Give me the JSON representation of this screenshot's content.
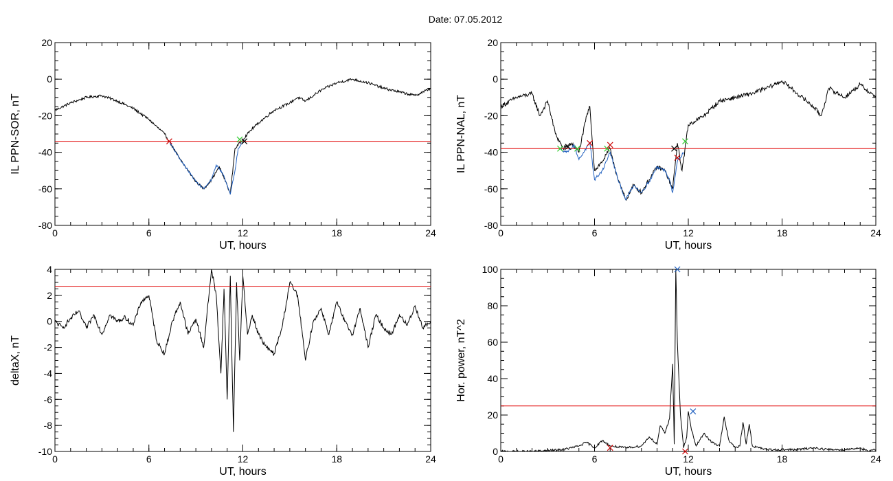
{
  "title": "Date:  07.05.2012",
  "chart_data": [
    {
      "id": "sor",
      "type": "line",
      "xlabel": "UT, hours",
      "ylabel": "IL PPN-SOR, nT",
      "xlim": [
        0,
        24
      ],
      "ylim": [
        -80,
        20
      ],
      "xticks": [
        0,
        6,
        12,
        18,
        24
      ],
      "yticks": [
        -80,
        -60,
        -40,
        -20,
        0,
        20
      ],
      "series": [
        {
          "color": "#000000",
          "noise": 0.7,
          "x": [
            0,
            1,
            2,
            3,
            4,
            5,
            6,
            7,
            7.3,
            8,
            9,
            9.5,
            10,
            10.5,
            11,
            11.2,
            11.5,
            12,
            12.5,
            13,
            14,
            15,
            15.5,
            16,
            17,
            18,
            19,
            20,
            21,
            22,
            23,
            24
          ],
          "y": [
            -17,
            -13,
            -10,
            -9,
            -12,
            -16,
            -22,
            -30,
            -34,
            -44,
            -56,
            -60,
            -55,
            -48,
            -58,
            -63,
            -38,
            -33,
            -28,
            -24,
            -17,
            -13,
            -10,
            -12,
            -6,
            -2,
            0,
            -2,
            -5,
            -7,
            -9,
            -5
          ]
        },
        {
          "color": "#1f5fbf",
          "noise": 0.5,
          "x": [
            7.3,
            8,
            8.5,
            9,
            9.5,
            10,
            10.3,
            10.5,
            10.8,
            11,
            11.2,
            11.5,
            11.7,
            12
          ],
          "y": [
            -34,
            -44,
            -50,
            -56,
            -60,
            -55,
            -47,
            -49,
            -53,
            -58,
            -63,
            -50,
            -38,
            -34
          ]
        }
      ],
      "threshold": -34,
      "markers": [
        {
          "x": 7.3,
          "y": -34,
          "color": "#cc0000"
        },
        {
          "x": 11.8,
          "y": -33,
          "color": "#33cc33"
        },
        {
          "x": 12.1,
          "y": -34,
          "color": "#000000"
        }
      ]
    },
    {
      "id": "nal",
      "type": "line",
      "xlabel": "UT, hours",
      "ylabel": "IL PPN-NAL, nT",
      "xlim": [
        0,
        24
      ],
      "ylim": [
        -80,
        20
      ],
      "xticks": [
        0,
        6,
        12,
        18,
        24
      ],
      "yticks": [
        -80,
        -60,
        -40,
        -20,
        0,
        20
      ],
      "series": [
        {
          "color": "#000000",
          "noise": 1.2,
          "x": [
            0,
            1,
            2,
            2.5,
            3,
            3.5,
            4,
            4.5,
            5,
            5.5,
            5.7,
            6,
            6.5,
            7,
            7.5,
            8,
            8.5,
            9,
            9.5,
            10,
            10.5,
            11,
            11.3,
            11.6,
            12,
            13,
            14,
            15,
            16,
            17,
            18,
            19,
            20,
            20.5,
            21,
            22,
            23,
            24
          ],
          "y": [
            -15,
            -10,
            -8,
            -20,
            -12,
            -30,
            -38,
            -35,
            -40,
            -20,
            -15,
            -50,
            -45,
            -38,
            -55,
            -66,
            -58,
            -62,
            -55,
            -48,
            -50,
            -60,
            -35,
            -50,
            -25,
            -20,
            -12,
            -10,
            -8,
            -5,
            -1,
            -8,
            -15,
            -20,
            -5,
            -10,
            -3,
            -10
          ]
        },
        {
          "color": "#1f5fbf",
          "noise": 0.8,
          "x": [
            3.8,
            4.2,
            4.7,
            5,
            5.3,
            5.7,
            6,
            6.5,
            7,
            7.5,
            8,
            8.5,
            9,
            9.5,
            10,
            10.5,
            10.8,
            11,
            11.3,
            11.7
          ],
          "y": [
            -38,
            -40,
            -36,
            -44,
            -40,
            -35,
            -55,
            -50,
            -40,
            -55,
            -66,
            -58,
            -62,
            -56,
            -48,
            -50,
            -55,
            -62,
            -45,
            -40
          ]
        }
      ],
      "threshold": -38,
      "markers": [
        {
          "x": 3.8,
          "y": -38,
          "color": "#33cc33"
        },
        {
          "x": 4.3,
          "y": -37,
          "color": "#000000"
        },
        {
          "x": 4.9,
          "y": -38,
          "color": "#33cc33"
        },
        {
          "x": 5.7,
          "y": -35,
          "color": "#cc0000"
        },
        {
          "x": 6.8,
          "y": -38,
          "color": "#33cc33"
        },
        {
          "x": 7.0,
          "y": -36,
          "color": "#cc0000"
        },
        {
          "x": 11.1,
          "y": -38,
          "color": "#000000"
        },
        {
          "x": 11.3,
          "y": -43,
          "color": "#cc0000"
        },
        {
          "x": 11.8,
          "y": -34,
          "color": "#33cc33"
        }
      ]
    },
    {
      "id": "deltax",
      "type": "line",
      "xlabel": "UT, hours",
      "ylabel": "deltaX, nT",
      "xlim": [
        0,
        24
      ],
      "ylim": [
        -10,
        4
      ],
      "xticks": [
        0,
        6,
        12,
        18,
        24
      ],
      "yticks": [
        -10,
        -8,
        -6,
        -4,
        -2,
        0,
        2,
        4
      ],
      "series": [
        {
          "color": "#000000",
          "noise": 0.18,
          "x": [
            0,
            0.5,
            1,
            1.5,
            2,
            2.5,
            3,
            3.5,
            4,
            4.5,
            5,
            5.5,
            6,
            6.5,
            7,
            7.5,
            8,
            8.5,
            9,
            9.5,
            10,
            10.3,
            10.6,
            10.8,
            11,
            11.2,
            11.4,
            11.6,
            11.8,
            12,
            12.3,
            12.6,
            13,
            13.5,
            14,
            14.5,
            15,
            15.5,
            16,
            16.5,
            17,
            17.5,
            18,
            18.5,
            19,
            19.5,
            20,
            20.5,
            21,
            21.5,
            22,
            22.5,
            23,
            23.5,
            24
          ],
          "y": [
            0,
            -0.5,
            0.2,
            0.8,
            -0.5,
            0.5,
            -1,
            0.5,
            0,
            0.3,
            -0.3,
            1.5,
            2,
            -1.5,
            -2.5,
            0,
            1.5,
            -1,
            0.2,
            -2,
            4,
            2,
            -4,
            2.5,
            -6,
            3.5,
            -8.5,
            3,
            -3,
            3.5,
            -1,
            0.5,
            -1,
            -2,
            -2.5,
            -0.5,
            3,
            2,
            -3,
            0,
            1,
            -1,
            1.5,
            0,
            -1,
            1,
            -2,
            0.5,
            -0.5,
            -1,
            0.5,
            -0.3,
            1.2,
            -0.5,
            0
          ]
        }
      ],
      "threshold": 2.7,
      "markers": []
    },
    {
      "id": "power",
      "type": "line",
      "xlabel": "UT, hours",
      "ylabel": "Hor. power, nT^2",
      "xlim": [
        0,
        24
      ],
      "ylim": [
        0,
        100
      ],
      "xticks": [
        0,
        6,
        12,
        18,
        24
      ],
      "yticks": [
        0,
        20,
        40,
        60,
        80,
        100
      ],
      "series": [
        {
          "color": "#000000",
          "noise": 0.6,
          "x": [
            0,
            2,
            4,
            5,
            5.5,
            6,
            6.5,
            7,
            8,
            9,
            9.5,
            10,
            10.2,
            10.5,
            10.8,
            11,
            11.1,
            11.2,
            11.3,
            11.5,
            11.7,
            11.9,
            12,
            12.2,
            12.5,
            13,
            13.5,
            14,
            14.3,
            14.6,
            15,
            15.3,
            15.5,
            15.7,
            15.9,
            16.1,
            16.5,
            17,
            18,
            19,
            20,
            21,
            22,
            23,
            23.5,
            24
          ],
          "y": [
            0,
            0,
            1,
            3,
            5,
            2,
            6,
            3,
            2,
            3,
            8,
            4,
            14,
            10,
            18,
            48,
            4,
            100,
            60,
            20,
            2,
            8,
            22,
            12,
            3,
            10,
            5,
            3,
            19,
            6,
            2,
            3,
            16,
            4,
            15,
            3,
            2,
            1,
            1,
            1,
            2,
            1,
            1,
            2,
            0,
            1
          ]
        }
      ],
      "threshold": 25,
      "markers": [
        {
          "x": 7.0,
          "y": 2,
          "color": "#cc0000"
        },
        {
          "x": 11.3,
          "y": 100,
          "color": "#1f5fbf"
        },
        {
          "x": 11.8,
          "y": 0,
          "color": "#cc0000"
        },
        {
          "x": 12.3,
          "y": 22,
          "color": "#1f5fbf"
        }
      ]
    }
  ]
}
